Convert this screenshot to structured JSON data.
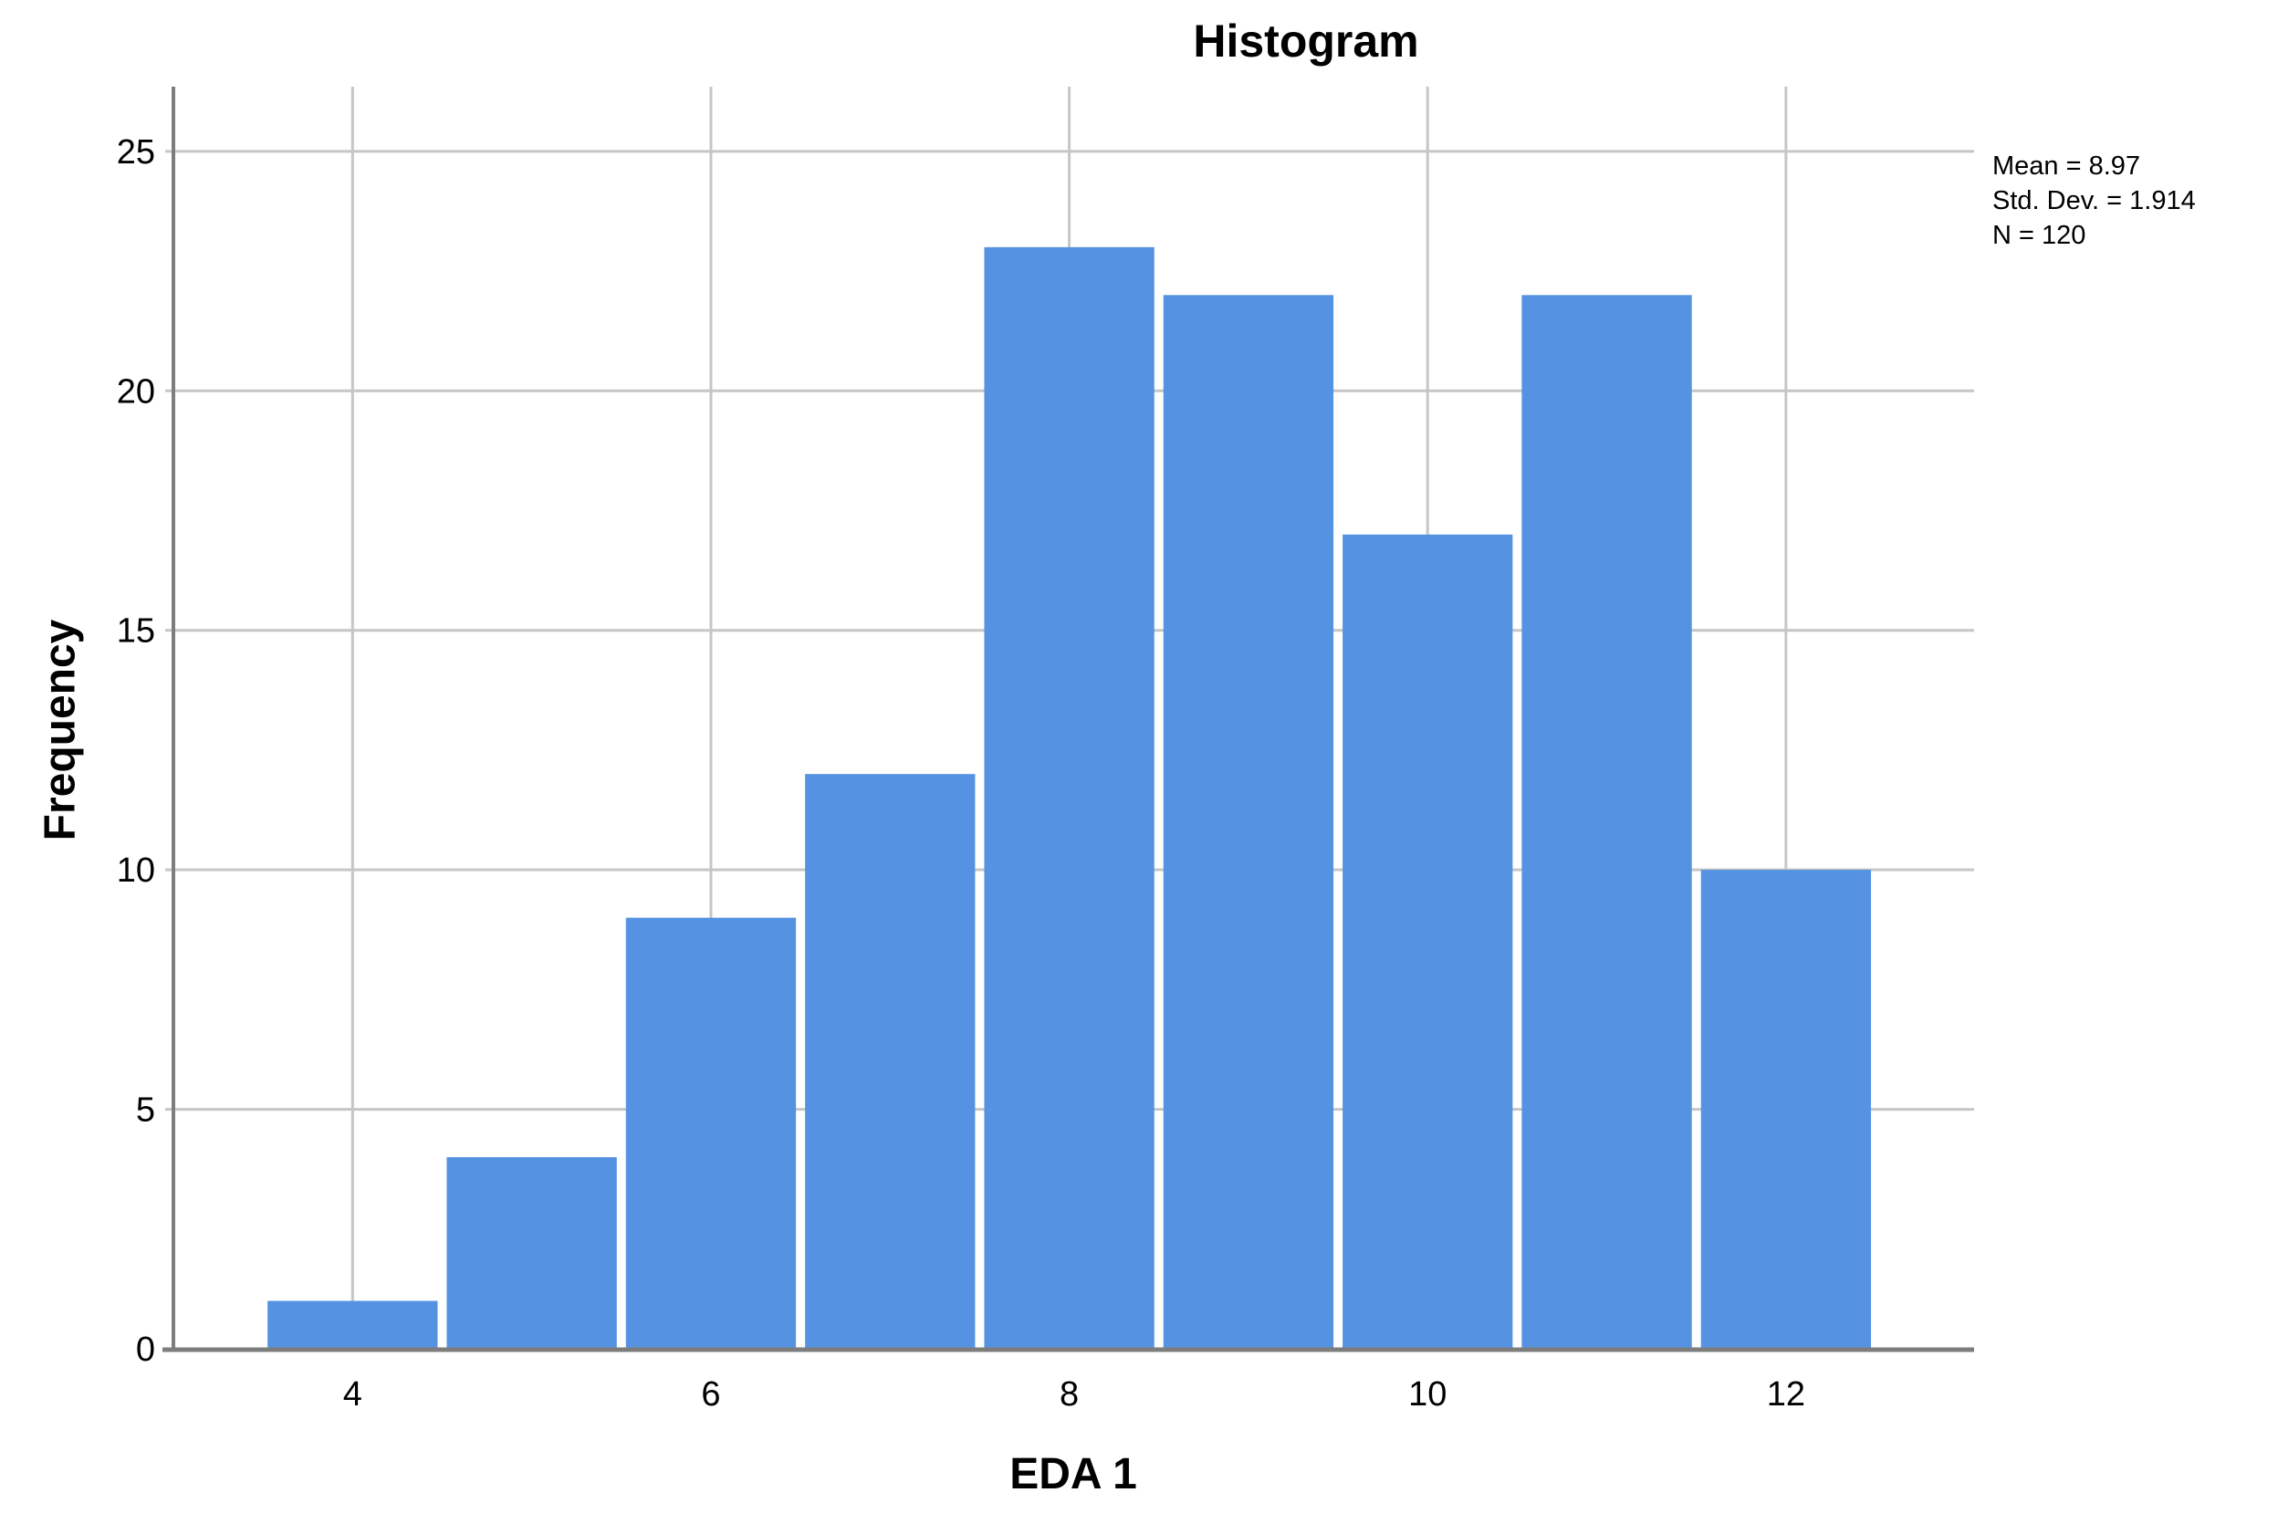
{
  "title": "Histogram",
  "annotation": {
    "mean": "Mean = 8.97",
    "std_dev": "Std. Dev. = 1.914",
    "n": "N = 120"
  },
  "chart_data": {
    "type": "bar",
    "subtype": "histogram",
    "title": "Histogram",
    "xlabel": "EDA 1",
    "ylabel": "Frequency",
    "categories": [
      4,
      5,
      6,
      7,
      8,
      9,
      10,
      11,
      12
    ],
    "values": [
      1,
      4,
      9,
      12,
      23,
      22,
      17,
      22,
      10
    ],
    "bin_width": 1,
    "x_ticks": [
      4,
      6,
      8,
      10,
      12
    ],
    "y_ticks": [
      0,
      5,
      10,
      15,
      20,
      25
    ],
    "xlim": [
      3,
      13.05
    ],
    "ylim": [
      0,
      26.35
    ],
    "grid": true,
    "legend": false,
    "annotation_lines": [
      "Mean = 8.97",
      "Std. Dev. = 1.914",
      "N = 120"
    ],
    "stats": {
      "mean": 8.97,
      "std_dev": 1.914,
      "n": 120
    },
    "colors": {
      "bar_fill": "#5593E2",
      "grid_line": "#C6C6C6",
      "axis_line": "#7D7D7D",
      "text": "#000000",
      "background": "#FFFFFF"
    }
  }
}
